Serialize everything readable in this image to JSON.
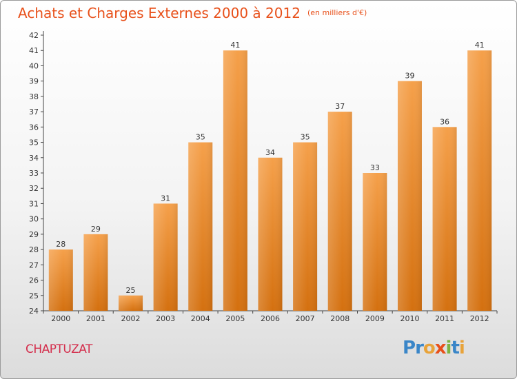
{
  "header": {
    "title": "Achats et Charges Externes 2000 à 2012",
    "unit": "(en milliers d'€)"
  },
  "footer": {
    "commune": "CHAPTUZAT",
    "logo": {
      "letters": [
        "P",
        "r",
        "o",
        "x",
        "i",
        "t",
        "i"
      ],
      "colors": [
        "#3a86c8",
        "#3a86c8",
        "#e8a33a",
        "#e8501a",
        "#7cb342",
        "#3a86c8",
        "#e8a33a"
      ]
    }
  },
  "colors": {
    "bar": "#f2922c",
    "bar_dark": "#d96f14",
    "accent": "#e8501a"
  },
  "chart_data": {
    "type": "bar",
    "title": "Achats et Charges Externes 2000 à 2012",
    "subtitle": "(en milliers d'€)",
    "categories": [
      "2000",
      "2001",
      "2002",
      "2003",
      "2004",
      "2005",
      "2006",
      "2007",
      "2008",
      "2009",
      "2010",
      "2011",
      "2012"
    ],
    "values": [
      28,
      29,
      25,
      31,
      35,
      41,
      34,
      35,
      37,
      33,
      39,
      36,
      41
    ],
    "data_labels": [
      "28",
      "29",
      "25",
      "31",
      "35",
      "41",
      "34",
      "35",
      "37",
      "33",
      "39",
      "36",
      "41"
    ],
    "ylim": [
      24,
      42
    ],
    "yticks": [
      24,
      25,
      26,
      27,
      28,
      29,
      30,
      31,
      32,
      33,
      34,
      35,
      36,
      37,
      38,
      39,
      40,
      41,
      42
    ],
    "grid": false,
    "legend": "none"
  }
}
